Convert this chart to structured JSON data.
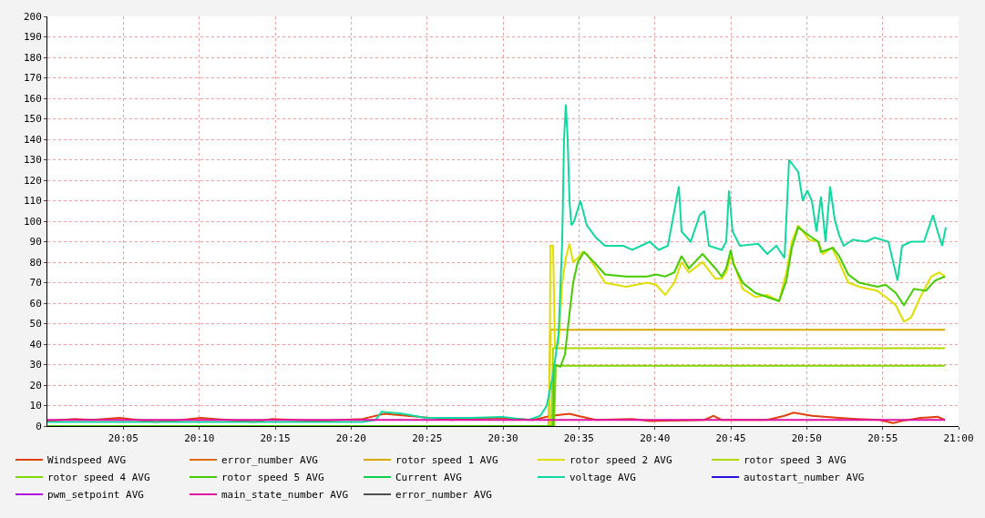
{
  "chart_data": {
    "type": "line",
    "xlim": [
      20,
      21
    ],
    "ylim": [
      0,
      200
    ],
    "xticks": [
      {
        "value": 20.0833,
        "label": "20:05"
      },
      {
        "value": 20.1667,
        "label": "20:10"
      },
      {
        "value": 20.25,
        "label": "20:15"
      },
      {
        "value": 20.3333,
        "label": "20:20"
      },
      {
        "value": 20.4167,
        "label": "20:25"
      },
      {
        "value": 20.5,
        "label": "20:30"
      },
      {
        "value": 20.5833,
        "label": "20:35"
      },
      {
        "value": 20.6667,
        "label": "20:40"
      },
      {
        "value": 20.75,
        "label": "20:45"
      },
      {
        "value": 20.8333,
        "label": "20:50"
      },
      {
        "value": 20.9167,
        "label": "20:55"
      },
      {
        "value": 21,
        "label": "21:00"
      }
    ],
    "yticks": [
      0,
      10,
      20,
      30,
      40,
      50,
      60,
      70,
      80,
      90,
      100,
      110,
      120,
      130,
      140,
      150,
      160,
      170,
      180,
      190,
      200
    ],
    "grid": true,
    "legend": "bottom",
    "marker": "none",
    "line_style": "solid",
    "series": [
      {
        "name": "Windspeed AVG",
        "color": "#e0400a",
        "x": [
          20,
          20.03,
          20.049,
          20.079,
          20.099,
          20.118,
          20.148,
          20.168,
          20.197,
          20.227,
          20.247,
          20.296,
          20.346,
          20.37,
          20.395,
          20.444,
          20.494,
          20.533,
          20.553,
          20.573,
          20.582,
          20.602,
          20.642,
          20.661,
          20.721,
          20.731,
          20.74,
          20.79,
          20.809,
          20.819,
          20.839,
          20.869,
          20.888,
          20.913,
          20.923,
          20.928,
          20.938,
          20.958,
          20.977,
          20.985
        ],
        "values": [
          2.5,
          3.5,
          3,
          4,
          3,
          2,
          3,
          4,
          3,
          2,
          3.5,
          2.5,
          3.5,
          6,
          5,
          3,
          4,
          3,
          5,
          6,
          5,
          3,
          3.5,
          2.5,
          3,
          5,
          3,
          3,
          5,
          6.5,
          5,
          4,
          3.5,
          3,
          2,
          1.5,
          2.5,
          4,
          4.5,
          3
        ]
      },
      {
        "name": "error_number AVG",
        "color": "#e06a10",
        "values": [
          null
        ]
      },
      {
        "name": "rotor speed 1 AVG",
        "color": "#d9a800",
        "x": [
          20.55,
          20.552,
          20.985
        ],
        "values": [
          0,
          47,
          47
        ]
      },
      {
        "name": "rotor speed 2 AVG",
        "color": "#dede00",
        "x": [
          20,
          20.551,
          20.552,
          20.555,
          20.557,
          20.561,
          20.565,
          20.569,
          20.573,
          20.577,
          20.582,
          20.587,
          20.592,
          20.602,
          20.612,
          20.635,
          20.658,
          20.668,
          20.678,
          20.688,
          20.696,
          20.704,
          20.719,
          20.733,
          20.74,
          20.745,
          20.75,
          20.753,
          20.763,
          20.777,
          20.79,
          20.803,
          20.811,
          20.817,
          20.824,
          20.836,
          20.846,
          20.851,
          20.861,
          20.869,
          20.879,
          20.891,
          20.911,
          20.92,
          20.931,
          20.94,
          20.948,
          20.958,
          20.97,
          20.979,
          20.985
        ],
        "values": [
          0,
          0,
          88,
          88,
          38,
          40,
          70,
          82,
          89,
          80,
          82,
          85,
          84,
          77,
          70,
          68,
          70,
          69,
          64,
          70,
          80,
          75,
          80,
          72,
          72,
          75,
          83,
          80,
          67,
          63,
          64,
          61,
          75,
          90,
          98,
          91,
          90,
          84,
          87,
          80,
          70,
          68,
          66,
          63,
          59,
          51,
          53,
          63,
          73,
          75,
          73
        ]
      },
      {
        "name": "rotor speed 3 AVG",
        "color": "#b0d800",
        "x": [
          20.553,
          20.555,
          20.985
        ],
        "values": [
          0,
          38,
          38
        ]
      },
      {
        "name": "rotor speed 4 AVG",
        "color": "#80d800",
        "x": [
          20.556,
          20.558,
          20.985
        ],
        "values": [
          0,
          29.5,
          29.5
        ]
      },
      {
        "name": "rotor speed 5 AVG",
        "color": "#44cc00",
        "x": [
          20,
          20.555,
          20.556,
          20.563,
          20.568,
          20.573,
          20.577,
          20.582,
          20.589,
          20.602,
          20.612,
          20.635,
          20.658,
          20.668,
          20.678,
          20.688,
          20.696,
          20.704,
          20.719,
          20.733,
          20.74,
          20.745,
          20.75,
          20.753,
          20.763,
          20.777,
          20.79,
          20.803,
          20.811,
          20.817,
          20.824,
          20.836,
          20.846,
          20.849,
          20.862,
          20.869,
          20.879,
          20.891,
          20.911,
          20.92,
          20.931,
          20.94,
          20.951,
          20.964,
          20.974,
          20.985
        ],
        "values": [
          0,
          0,
          30,
          29,
          35,
          55,
          70,
          80,
          85,
          79,
          74,
          73,
          73,
          74,
          73,
          75,
          83,
          77,
          84,
          77,
          73,
          77,
          86,
          79,
          70,
          65,
          63,
          61,
          71,
          87,
          97,
          93,
          90,
          85,
          87,
          83,
          74,
          70,
          68,
          69,
          65,
          59,
          67,
          66,
          71,
          73
        ]
      },
      {
        "name": "Current AVG",
        "color": "#10d050",
        "values": [
          null
        ]
      },
      {
        "name": "voltage AVG",
        "color": "#10d8a0",
        "x": [
          20,
          20.346,
          20.36,
          20.367,
          20.39,
          20.415,
          20.464,
          20.499,
          20.528,
          20.541,
          20.548,
          20.555,
          20.561,
          20.565,
          20.567,
          20.569,
          20.571,
          20.573,
          20.575,
          20.578,
          20.585,
          20.592,
          20.602,
          20.612,
          20.632,
          20.642,
          20.661,
          20.671,
          20.681,
          20.693,
          20.696,
          20.706,
          20.716,
          20.721,
          20.726,
          20.74,
          20.745,
          20.748,
          20.752,
          20.76,
          20.78,
          20.79,
          20.8,
          20.809,
          20.814,
          20.819,
          20.824,
          20.829,
          20.834,
          20.839,
          20.844,
          20.849,
          20.854,
          20.859,
          20.864,
          20.869,
          20.874,
          20.884,
          20.898,
          20.908,
          20.923,
          20.933,
          20.938,
          20.948,
          20.962,
          20.972,
          20.977,
          20.982,
          20.986
        ],
        "values": [
          2,
          2,
          3,
          7,
          6,
          4,
          4,
          4.5,
          3,
          5,
          10,
          25,
          45,
          90,
          140,
          157,
          140,
          110,
          98,
          100,
          110,
          98,
          92,
          88,
          88,
          86,
          90,
          86,
          88,
          117,
          95,
          90,
          103,
          105,
          88,
          86,
          90,
          115,
          95,
          88,
          89,
          84,
          88,
          82,
          130,
          127,
          124,
          110,
          115,
          110,
          95,
          112,
          90,
          117,
          101,
          93,
          88,
          91,
          90,
          92,
          90,
          71,
          88,
          90,
          90,
          103,
          95,
          88,
          97
        ]
      },
      {
        "name": "autostart_number AVG",
        "color": "#2a10e0",
        "values": [
          null
        ]
      },
      {
        "name": "pwm_setpoint AVG",
        "color": "#b010e0",
        "values": [
          null
        ]
      },
      {
        "name": "main_state_number AVG",
        "color": "#e010a0",
        "x": [
          20,
          20.985
        ],
        "values": [
          3,
          3
        ]
      },
      {
        "name": "error_number AVG",
        "color": "#505050",
        "values": [
          null
        ]
      }
    ]
  }
}
